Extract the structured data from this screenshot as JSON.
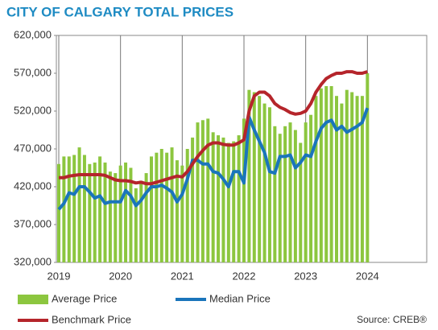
{
  "chart_data": {
    "type": "bar_line",
    "title": "CITY OF CALGARY TOTAL PRICES",
    "categories": [
      "2019",
      null,
      null,
      null,
      null,
      null,
      null,
      null,
      null,
      null,
      null,
      null,
      "2020",
      null,
      null,
      null,
      null,
      null,
      null,
      null,
      null,
      null,
      null,
      null,
      "2021",
      null,
      null,
      null,
      null,
      null,
      null,
      null,
      null,
      null,
      null,
      null,
      "2022",
      null,
      null,
      null,
      null,
      null,
      null,
      null,
      null,
      null,
      null,
      null,
      "2023",
      null,
      null,
      null,
      null,
      null,
      null,
      null,
      null,
      null,
      null,
      null,
      "2024"
    ],
    "series": [
      {
        "name": "Average Price",
        "kind": "bar",
        "color": "#8cc63f",
        "values": [
          450000,
          460000,
          460000,
          462000,
          472000,
          462000,
          450000,
          452000,
          460000,
          452000,
          440000,
          438000,
          448000,
          452000,
          445000,
          418000,
          428000,
          438000,
          460000,
          465000,
          470000,
          465000,
          472000,
          455000,
          448000,
          470000,
          485000,
          505000,
          508000,
          510000,
          492000,
          488000,
          485000,
          478000,
          480000,
          488000,
          510000,
          548000,
          545000,
          540000,
          530000,
          525000,
          500000,
          490000,
          500000,
          505000,
          495000,
          478000,
          505000,
          515000,
          540000,
          550000,
          553000,
          553000,
          540000,
          530000,
          548000,
          545000,
          540000,
          540000,
          570000
        ]
      },
      {
        "name": "Median Price",
        "kind": "line",
        "color": "#1a75bb",
        "values": [
          390000,
          398000,
          412000,
          410000,
          420000,
          420000,
          413000,
          405000,
          408000,
          398000,
          400000,
          400000,
          400000,
          415000,
          408000,
          395000,
          402000,
          412000,
          420000,
          420000,
          422000,
          418000,
          413000,
          400000,
          410000,
          430000,
          455000,
          455000,
          450000,
          450000,
          440000,
          438000,
          430000,
          420000,
          440000,
          440000,
          425000,
          512000,
          495000,
          480000,
          465000,
          440000,
          438000,
          460000,
          460000,
          462000,
          445000,
          452000,
          462000,
          460000,
          480000,
          497000,
          505000,
          508000,
          495000,
          500000,
          492000,
          496000,
          500000,
          505000,
          524000
        ]
      },
      {
        "name": "Benchmark Price",
        "kind": "line",
        "color": "#b5252b",
        "values": [
          432000,
          432000,
          434000,
          435000,
          436000,
          436000,
          436000,
          436000,
          436000,
          435000,
          432000,
          429000,
          428000,
          428000,
          427000,
          425000,
          426000,
          424000,
          424000,
          426000,
          428000,
          430000,
          432000,
          434000,
          433000,
          440000,
          450000,
          460000,
          468000,
          475000,
          478000,
          478000,
          476000,
          475000,
          475000,
          478000,
          482000,
          520000,
          540000,
          545000,
          545000,
          540000,
          530000,
          525000,
          522000,
          518000,
          516000,
          517000,
          520000,
          530000,
          545000,
          555000,
          563000,
          567000,
          570000,
          570000,
          572000,
          572000,
          570000,
          570000,
          572000
        ]
      }
    ],
    "ylim": [
      320000,
      620000
    ],
    "yticks": [
      {
        "value": 320000,
        "label": "320,000"
      },
      {
        "value": 370000,
        "label": "370,000"
      },
      {
        "value": 420000,
        "label": "420,000"
      },
      {
        "value": 470000,
        "label": "470,000"
      },
      {
        "value": 520000,
        "label": "520,000"
      },
      {
        "value": 570000,
        "label": "570,000"
      },
      {
        "value": 620000,
        "label": "620,000"
      }
    ],
    "source": "Source: CREB®"
  }
}
